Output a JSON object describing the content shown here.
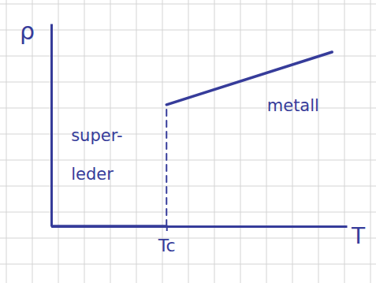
{
  "chart_data": {
    "type": "line",
    "x_label": "T",
    "y_label": "ρ",
    "xlim": [
      0,
      10
    ],
    "ylim": [
      0,
      10
    ],
    "xticks": [
      {
        "value": 3.9,
        "label": "Tc"
      }
    ],
    "yticks": [],
    "tick_labels": "x",
    "series": [
      {
        "x": [
          0,
          3.9
        ],
        "values": [
          0,
          0
        ],
        "color": "#363c9a",
        "line_style": "solid"
      },
      {
        "x": [
          3.9,
          9.5
        ],
        "values": [
          6.0,
          8.6
        ],
        "color": "#363c9a",
        "line_style": "solid"
      },
      {
        "x": [
          3.9,
          3.9
        ],
        "values": [
          0,
          6.0
        ],
        "color": "#363c9a",
        "line_style": "dashed"
      }
    ],
    "annotations": [
      {
        "text": "super-",
        "x": 0.67,
        "y": 4.2
      },
      {
        "text": "leder",
        "x": 0.67,
        "y": 2.3
      },
      {
        "text": "metall",
        "x": 7.3,
        "y": 5.7
      }
    ]
  }
}
